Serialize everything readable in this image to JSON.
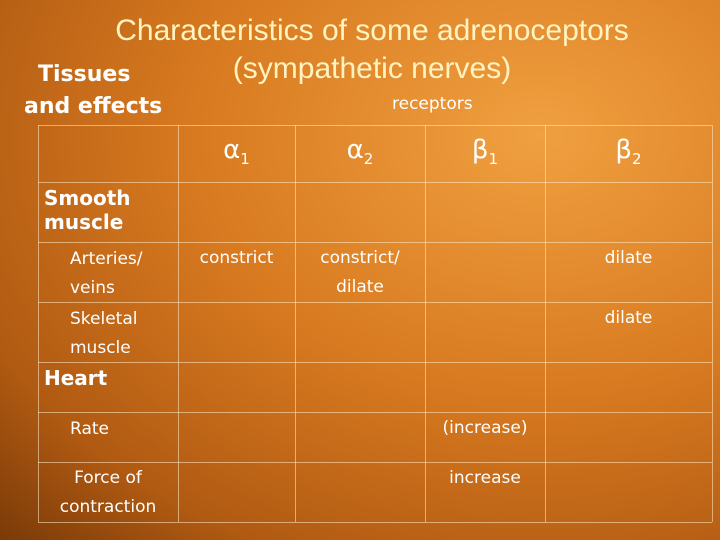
{
  "title": [
    "Characteristics of some adrenoceptors",
    "(sympathetic nerves)"
  ],
  "row_header_label": [
    "Tissues",
    "and effects"
  ],
  "column_group_label": "receptors",
  "columns": [
    {
      "symbol": "α",
      "sub": "1"
    },
    {
      "symbol": "α",
      "sub": "2"
    },
    {
      "symbol": "β",
      "sub": "1"
    },
    {
      "symbol": "β",
      "sub": "2"
    }
  ],
  "rows": [
    {
      "label": [
        "Smooth",
        "muscle"
      ],
      "section": true,
      "cells": [
        null,
        null,
        null,
        null
      ]
    },
    {
      "label": [
        "Arteries/",
        "veins"
      ],
      "section": false,
      "cells": [
        [
          "constrict"
        ],
        [
          "constrict/",
          "dilate"
        ],
        null,
        [
          "dilate"
        ]
      ]
    },
    {
      "label": [
        "Skeletal",
        "muscle"
      ],
      "section": false,
      "cells": [
        null,
        null,
        null,
        [
          "dilate"
        ]
      ]
    },
    {
      "label": [
        "Heart"
      ],
      "section": true,
      "cells": [
        null,
        null,
        null,
        null
      ]
    },
    {
      "label": [
        "Rate"
      ],
      "section": false,
      "cells": [
        null,
        null,
        [
          "(increase)"
        ],
        null
      ]
    },
    {
      "label": [
        "Force of",
        "contraction"
      ],
      "section": false,
      "cells": [
        null,
        null,
        [
          "increase"
        ],
        null
      ]
    }
  ]
}
